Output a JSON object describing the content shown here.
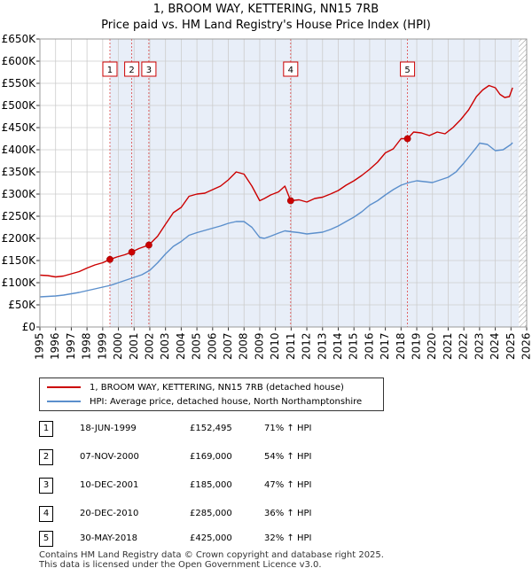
{
  "title_line1": "1, BROOM WAY, KETTERING, NN15 7RB",
  "title_line2": "Price paid vs. HM Land Registry's House Price Index (HPI)",
  "colors": {
    "property": "#cc0000",
    "hpi": "#5b8fcc",
    "shade": "#e8eef8",
    "grid": "#cccccc"
  },
  "legend": {
    "property_label": "1, BROOM WAY, KETTERING, NN15 7RB (detached house)",
    "hpi_label": "HPI: Average price, detached house, North Northamptonshire"
  },
  "sales": [
    {
      "num": "1",
      "date": "18-JUN-1999",
      "price": "£152,495",
      "hpi_change": "71% ↑ HPI"
    },
    {
      "num": "2",
      "date": "07-NOV-2000",
      "price": "£169,000",
      "hpi_change": "54% ↑ HPI"
    },
    {
      "num": "3",
      "date": "10-DEC-2001",
      "price": "£185,000",
      "hpi_change": "47% ↑ HPI"
    },
    {
      "num": "4",
      "date": "20-DEC-2010",
      "price": "£285,000",
      "hpi_change": "36% ↑ HPI"
    },
    {
      "num": "5",
      "date": "30-MAY-2018",
      "price": "£425,000",
      "hpi_change": "32% ↑ HPI"
    }
  ],
  "footer_line1": "Contains HM Land Registry data © Crown copyright and database right 2025.",
  "footer_line2": "This data is licensed under the Open Government Licence v3.0.",
  "chart_data": {
    "type": "line",
    "title": "1, BROOM WAY, KETTERING, NN15 7RB",
    "subtitle": "Price paid vs. HM Land Registry's House Price Index (HPI)",
    "xlabel": "",
    "ylabel": "",
    "xlim": [
      1995,
      2026
    ],
    "ylim": [
      0,
      650000
    ],
    "x_ticks": [
      1995,
      1996,
      1997,
      1998,
      1999,
      2000,
      2001,
      2002,
      2003,
      2004,
      2005,
      2006,
      2007,
      2008,
      2009,
      2010,
      2011,
      2012,
      2013,
      2014,
      2015,
      2016,
      2017,
      2018,
      2019,
      2020,
      2021,
      2022,
      2023,
      2024,
      2025,
      2026
    ],
    "y_ticks": [
      0,
      50000,
      100000,
      150000,
      200000,
      250000,
      300000,
      350000,
      400000,
      450000,
      500000,
      550000,
      600000,
      650000
    ],
    "y_tick_labels": [
      "£0",
      "£50K",
      "£100K",
      "£150K",
      "£200K",
      "£250K",
      "£300K",
      "£350K",
      "£400K",
      "£450K",
      "£500K",
      "£550K",
      "£600K",
      "£650K"
    ],
    "grid": true,
    "sale_period": [
      1999.46,
      2025.5
    ],
    "hatch_after": 2025.5,
    "legend_position": "below",
    "sale_markers": [
      {
        "label": "1",
        "x": 1999.46,
        "y": 152495
      },
      {
        "label": "2",
        "x": 2000.85,
        "y": 169000
      },
      {
        "label": "3",
        "x": 2001.94,
        "y": 185000
      },
      {
        "label": "4",
        "x": 2010.97,
        "y": 285000
      },
      {
        "label": "5",
        "x": 2018.41,
        "y": 425000
      }
    ],
    "series": [
      {
        "name": "1, BROOM WAY, KETTERING, NN15 7RB (detached house)",
        "color": "#cc0000",
        "x": [
          1995.0,
          1995.5,
          1996.0,
          1996.5,
          1997.0,
          1997.5,
          1998.0,
          1998.5,
          1999.0,
          1999.46,
          1999.9,
          2000.4,
          2000.85,
          2001.3,
          2001.94,
          2002.5,
          2003.0,
          2003.5,
          2004.0,
          2004.5,
          2005.0,
          2005.5,
          2006.0,
          2006.5,
          2007.0,
          2007.5,
          2008.0,
          2008.5,
          2009.0,
          2009.3,
          2009.7,
          2010.2,
          2010.6,
          2010.97,
          2011.5,
          2012.0,
          2012.5,
          2013.0,
          2013.5,
          2014.0,
          2014.5,
          2015.0,
          2015.5,
          2016.0,
          2016.5,
          2017.0,
          2017.5,
          2018.0,
          2018.41,
          2018.8,
          2019.3,
          2019.8,
          2020.3,
          2020.8,
          2021.3,
          2021.8,
          2022.3,
          2022.8,
          2023.2,
          2023.6,
          2024.0,
          2024.3,
          2024.6,
          2024.9,
          2025.1
        ],
        "values": [
          117000,
          116000,
          113000,
          115000,
          120000,
          125000,
          133000,
          140000,
          145000,
          152495,
          158000,
          163000,
          169000,
          177000,
          185000,
          205000,
          232000,
          258000,
          270000,
          295000,
          300000,
          302000,
          310000,
          318000,
          332000,
          350000,
          345000,
          318000,
          285000,
          290000,
          298000,
          305000,
          318000,
          285000,
          287000,
          282000,
          290000,
          293000,
          300000,
          308000,
          320000,
          330000,
          342000,
          356000,
          372000,
          393000,
          402000,
          425000,
          425000,
          440000,
          438000,
          432000,
          440000,
          436000,
          450000,
          468000,
          490000,
          520000,
          535000,
          545000,
          540000,
          525000,
          518000,
          520000,
          540000
        ]
      },
      {
        "name": "HPI: Average price, detached house, North Northamptonshire",
        "color": "#5b8fcc",
        "x": [
          1995.0,
          1995.5,
          1996.0,
          1996.5,
          1997.0,
          1997.5,
          1998.0,
          1998.5,
          1999.0,
          1999.5,
          2000.0,
          2000.5,
          2001.0,
          2001.5,
          2002.0,
          2002.5,
          2003.0,
          2003.5,
          2004.0,
          2004.5,
          2005.0,
          2005.5,
          2006.0,
          2006.5,
          2007.0,
          2007.5,
          2008.0,
          2008.5,
          2009.0,
          2009.3,
          2009.7,
          2010.2,
          2010.6,
          2011.0,
          2011.5,
          2012.0,
          2012.5,
          2013.0,
          2013.5,
          2014.0,
          2014.5,
          2015.0,
          2015.5,
          2016.0,
          2016.5,
          2017.0,
          2017.5,
          2018.0,
          2018.5,
          2019.0,
          2019.5,
          2020.0,
          2020.5,
          2021.0,
          2021.5,
          2022.0,
          2022.5,
          2022.8,
          2023.0,
          2023.5,
          2024.0,
          2024.5,
          2025.0,
          2025.1
        ],
        "values": [
          68000,
          69000,
          70000,
          72000,
          75000,
          78000,
          82000,
          86000,
          90000,
          94000,
          100000,
          106000,
          112000,
          118000,
          128000,
          145000,
          165000,
          182000,
          193000,
          207000,
          213000,
          218000,
          223000,
          228000,
          234000,
          238000,
          238000,
          225000,
          202000,
          200000,
          205000,
          212000,
          217000,
          215000,
          213000,
          210000,
          212000,
          214000,
          220000,
          228000,
          238000,
          248000,
          260000,
          275000,
          285000,
          298000,
          310000,
          320000,
          326000,
          330000,
          328000,
          326000,
          332000,
          338000,
          350000,
          370000,
          392000,
          405000,
          415000,
          412000,
          398000,
          400000,
          412000,
          416000
        ]
      }
    ]
  }
}
